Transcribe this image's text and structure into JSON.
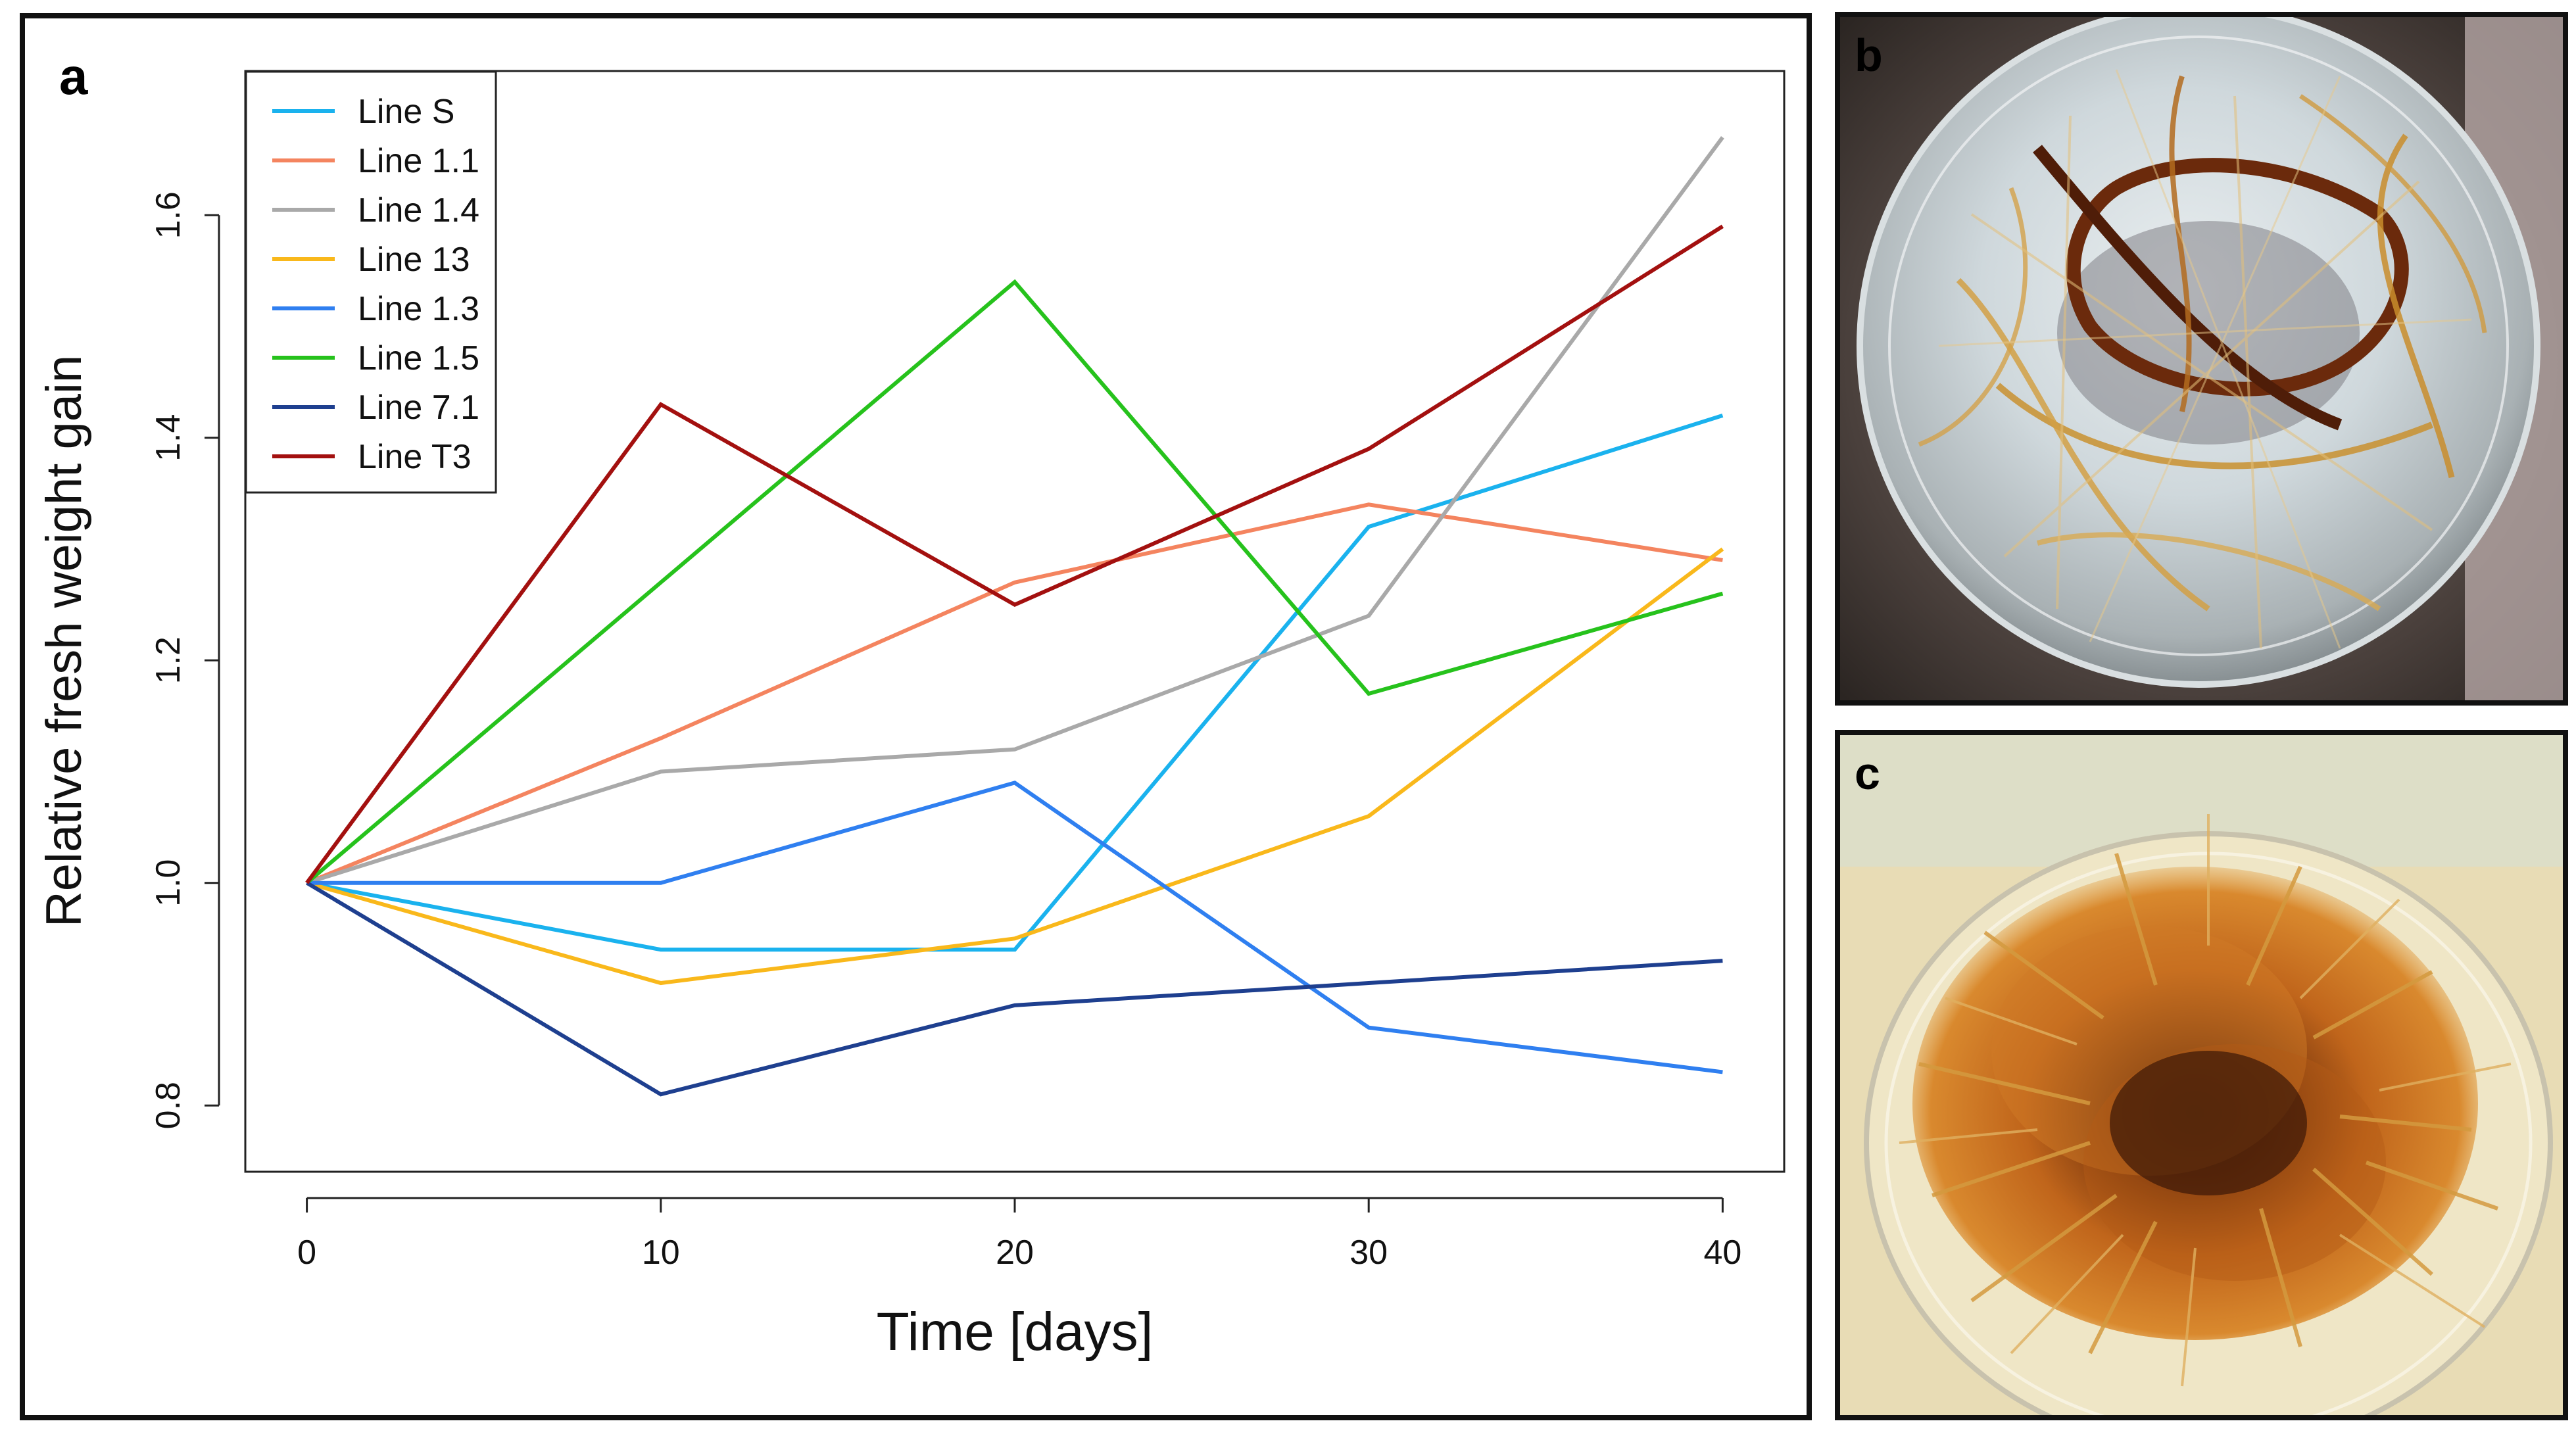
{
  "panels": {
    "a": {
      "label": "a"
    },
    "b": {
      "label": "b"
    },
    "c": {
      "label": "c"
    }
  },
  "chart_data": {
    "type": "line",
    "xlabel": "Time [days]",
    "ylabel": "Relative fresh weight gain",
    "xlim": [
      0,
      40
    ],
    "ylim": [
      0.78,
      1.69
    ],
    "xticks": [
      0,
      10,
      20,
      30,
      40
    ],
    "yticks": [
      0.8,
      1.0,
      1.2,
      1.4,
      1.6
    ],
    "x": [
      0,
      10,
      20,
      30,
      40
    ],
    "legend_position": "top-left",
    "grid": false,
    "series": [
      {
        "name": "Line S",
        "color": "#1ab2ee",
        "values": [
          1.0,
          0.94,
          0.94,
          1.32,
          1.42
        ]
      },
      {
        "name": "Line 1.1",
        "color": "#f4845f",
        "values": [
          1.0,
          1.13,
          1.27,
          1.34,
          1.29
        ]
      },
      {
        "name": "Line 1.4",
        "color": "#a9a9a9",
        "values": [
          1.0,
          1.1,
          1.12,
          1.24,
          1.67
        ]
      },
      {
        "name": "Line 13",
        "color": "#f9b81b",
        "values": [
          1.0,
          0.91,
          0.95,
          1.06,
          1.3
        ]
      },
      {
        "name": "Line 1.3",
        "color": "#2f7ff0",
        "values": [
          1.0,
          1.0,
          1.09,
          0.87,
          0.83
        ]
      },
      {
        "name": "Line 1.5",
        "color": "#26c21c",
        "values": [
          1.0,
          1.27,
          1.54,
          1.17,
          1.26
        ]
      },
      {
        "name": "Line 7.1",
        "color": "#1e3f8f",
        "values": [
          1.0,
          0.81,
          0.89,
          0.91,
          0.93
        ]
      },
      {
        "name": "Line T3",
        "color": "#a3100f",
        "values": [
          1.0,
          1.43,
          1.25,
          1.39,
          1.59
        ]
      }
    ]
  }
}
